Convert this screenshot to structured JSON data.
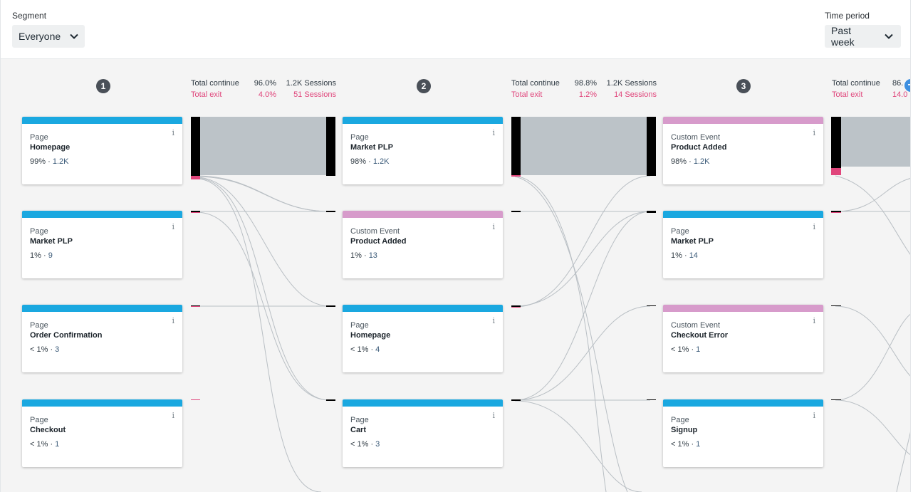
{
  "header": {
    "segment_label": "Segment",
    "segment_value": "Everyone",
    "time_label": "Time period",
    "time_value": "Past week"
  },
  "steps": [
    {
      "number": "1",
      "continue_label": "Total continue",
      "continue_pct": "96.0%",
      "continue_sessions": "1.2K Sessions",
      "exit_label": "Total exit",
      "exit_pct": "4.0%",
      "exit_sessions": "51 Sessions",
      "cards": [
        {
          "type": "Page",
          "name": "Homepage",
          "pct": "99%",
          "count": "1.2K",
          "kind": "page"
        },
        {
          "type": "Page",
          "name": "Market PLP",
          "pct": "1%",
          "count": "9",
          "kind": "page"
        },
        {
          "type": "Page",
          "name": "Order Confirmation",
          "pct": "< 1%",
          "count": "3",
          "kind": "page"
        },
        {
          "type": "Page",
          "name": "Checkout",
          "pct": "< 1%",
          "count": "1",
          "kind": "page"
        }
      ]
    },
    {
      "number": "2",
      "continue_label": "Total continue",
      "continue_pct": "98.8%",
      "continue_sessions": "1.2K Sessions",
      "exit_label": "Total exit",
      "exit_pct": "1.2%",
      "exit_sessions": "14 Sessions",
      "cards": [
        {
          "type": "Page",
          "name": "Market PLP",
          "pct": "98%",
          "count": "1.2K",
          "kind": "page"
        },
        {
          "type": "Custom Event",
          "name": "Product Added",
          "pct": "1%",
          "count": "13",
          "kind": "event"
        },
        {
          "type": "Page",
          "name": "Homepage",
          "pct": "< 1%",
          "count": "4",
          "kind": "page"
        },
        {
          "type": "Page",
          "name": "Cart",
          "pct": "< 1%",
          "count": "3",
          "kind": "page"
        }
      ]
    },
    {
      "number": "3",
      "continue_label": "Total continue",
      "continue_pct": "86.",
      "continue_sessions": "",
      "exit_label": "Total exit",
      "exit_pct": "14.0",
      "exit_sessions": "",
      "cards": [
        {
          "type": "Custom Event",
          "name": "Product Added",
          "pct": "98%",
          "count": "1.2K",
          "kind": "event"
        },
        {
          "type": "Page",
          "name": "Market PLP",
          "pct": "1%",
          "count": "14",
          "kind": "page"
        },
        {
          "type": "Custom Event",
          "name": "Checkout Error",
          "pct": "< 1%",
          "count": "1",
          "kind": "event"
        },
        {
          "type": "Page",
          "name": "Signup",
          "pct": "< 1%",
          "count": "1",
          "kind": "page"
        }
      ]
    }
  ],
  "info_glyph": "i",
  "metric_separator": " · ",
  "icons": {
    "chevron": "chevron-down-icon",
    "add": "plus-circle-icon",
    "info": "info-icon"
  },
  "colors": {
    "page_bar": "#1aa8e0",
    "event_bar": "#d79bcb",
    "exit": "#e0457b",
    "flow": "#bcc3c8",
    "badge": "#4a5058",
    "add_button": "#3d8fe0"
  }
}
